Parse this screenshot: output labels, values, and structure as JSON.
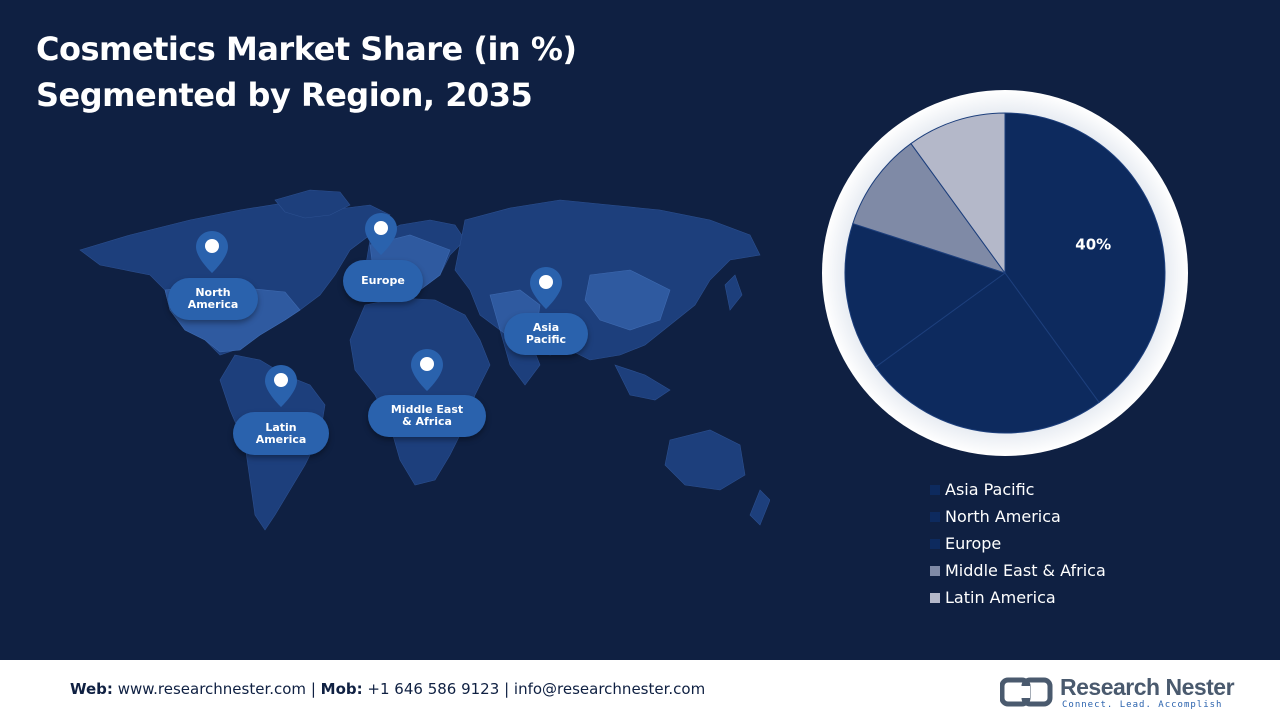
{
  "title": {
    "line1": "Cosmetics Market Share (in %)",
    "line2": "Segmented by Region, 2035"
  },
  "map": {
    "regions": [
      {
        "key": "north_america",
        "label_line1": "North",
        "label_line2": "America"
      },
      {
        "key": "europe",
        "label_line1": "Europe",
        "label_line2": ""
      },
      {
        "key": "asia_pacific",
        "label_line1": "Asia",
        "label_line2": "Pacific"
      },
      {
        "key": "latin_america",
        "label_line1": "Latin",
        "label_line2": "America"
      },
      {
        "key": "mea",
        "label_line1": "Middle East",
        "label_line2": "& Africa"
      }
    ]
  },
  "chart_data": {
    "type": "pie",
    "title": "Cosmetics Market Share (in %) Segmented by Region, 2035",
    "categories": [
      "Asia Pacific",
      "North America",
      "Europe",
      "Middle East & Africa",
      "Latin America"
    ],
    "values": [
      40,
      25,
      15,
      10,
      10
    ],
    "colors": [
      "#0d2a5e",
      "#0d2a5e",
      "#0d2a5e",
      "#7f8aa6",
      "#b4b8c9"
    ],
    "data_labels": [
      "40%",
      "",
      "",
      "",
      ""
    ],
    "legend_position": "bottom-right"
  },
  "footer": {
    "web_label": "Web:",
    "web_value": "www.researchnester.com",
    "sep1": "|",
    "mob_label": "Mob:",
    "mob_value": "+1 646 586 9123",
    "sep2": "|",
    "email": "info@researchnester.com"
  },
  "logo": {
    "name": "Research Nester",
    "tagline": "Connect. Lead. Accomplish"
  }
}
